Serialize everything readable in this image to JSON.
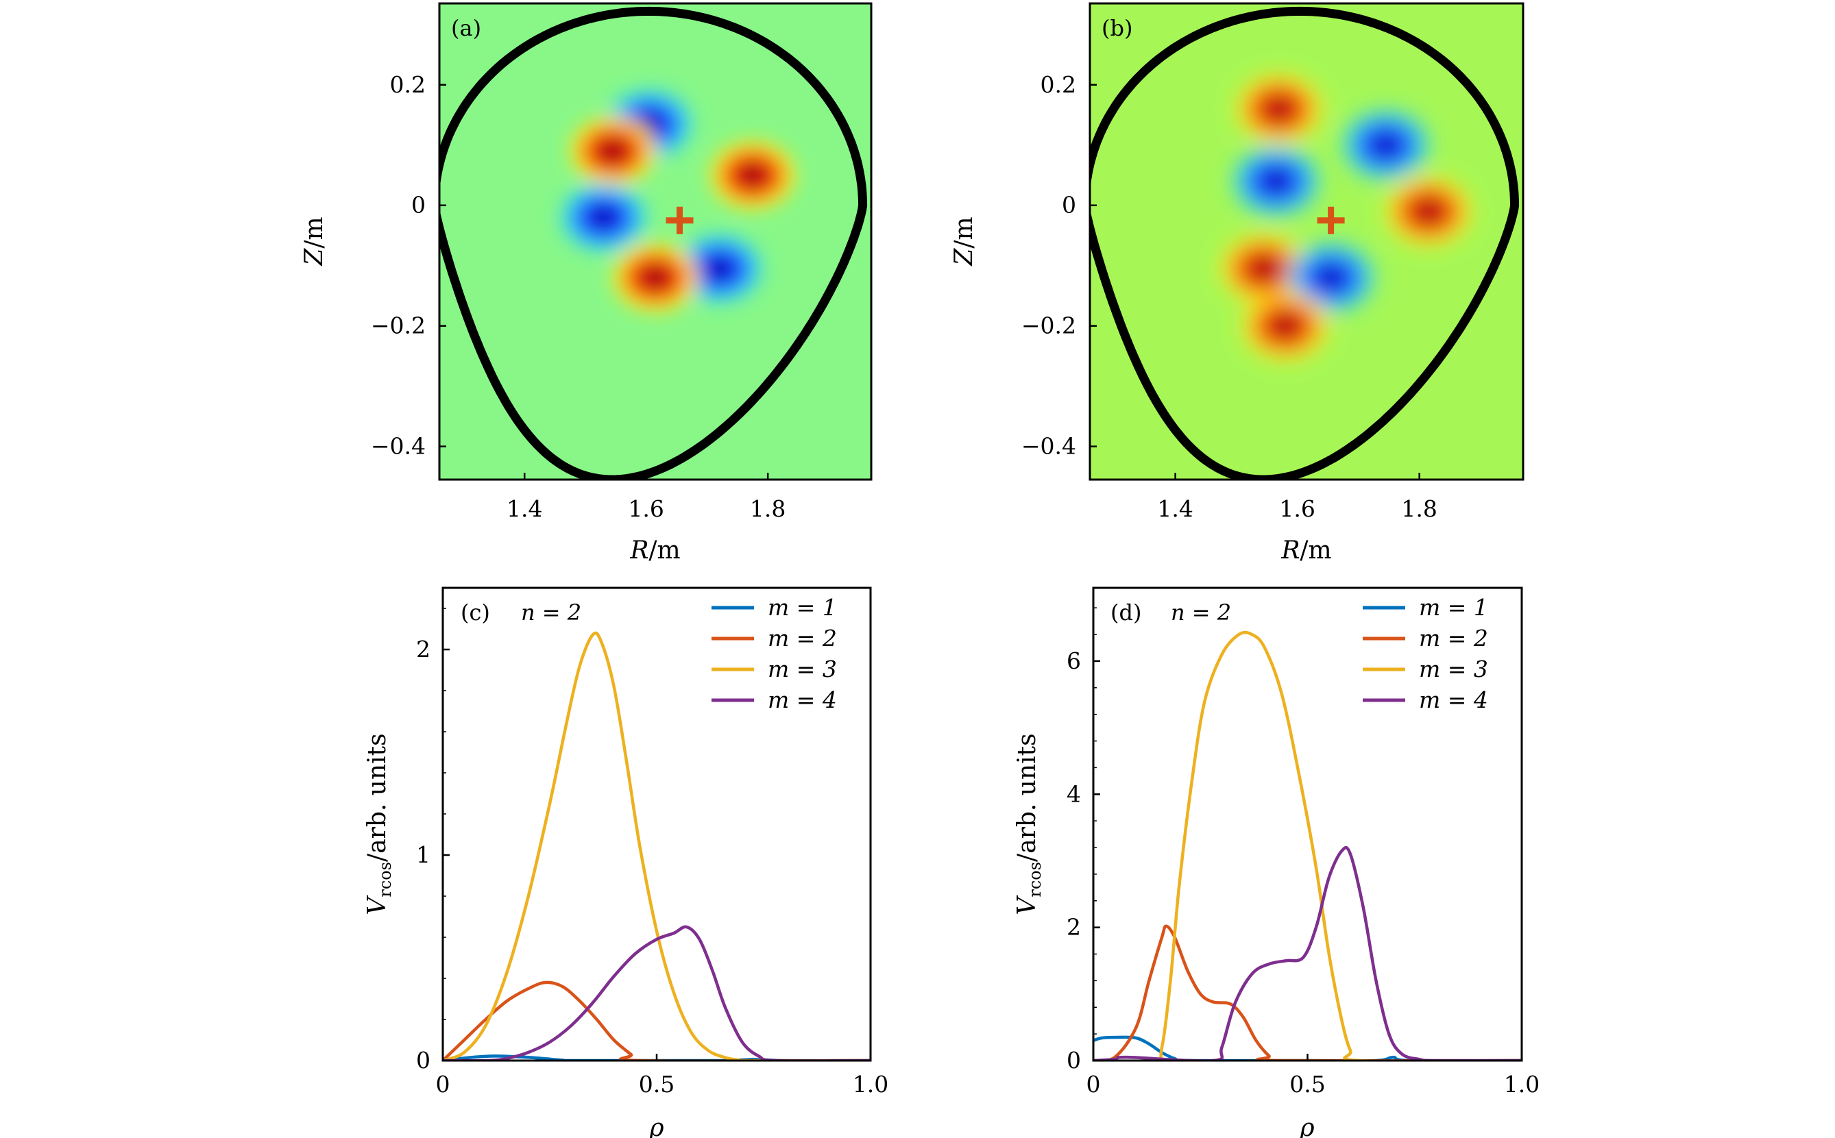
{
  "chart_data": [
    {
      "panel": "(a)",
      "type": "heatmap",
      "xlabel_var": "R",
      "xlabel_unit": "/m",
      "ylabel_var": "Z",
      "ylabel_unit": "/m",
      "xlim": [
        1.26,
        1.97
      ],
      "ylim": [
        -0.455,
        0.335
      ],
      "xticks": [
        1.4,
        1.6,
        1.8
      ],
      "xtick_labels": [
        "1.4",
        "1.6",
        "1.8"
      ],
      "yticks": [
        -0.4,
        -0.2,
        0,
        0.2
      ],
      "ytick_labels": [
        "−0.4",
        "−0.2",
        "0",
        "0.2"
      ],
      "background_color": "#88f788",
      "boundary_color": "#000000",
      "marker_color": "#d95319",
      "magnetic_axis": [
        1.655,
        -0.025
      ],
      "colormap": "jet",
      "blobs": [
        {
          "x": 1.605,
          "y": 0.135,
          "sign": -1
        },
        {
          "x": 1.545,
          "y": 0.09,
          "sign": 1
        },
        {
          "x": 1.775,
          "y": 0.05,
          "sign": 1
        },
        {
          "x": 1.53,
          "y": -0.02,
          "sign": -1
        },
        {
          "x": 1.72,
          "y": -0.105,
          "sign": -1
        },
        {
          "x": 1.615,
          "y": -0.12,
          "sign": 1
        }
      ]
    },
    {
      "panel": "(b)",
      "type": "heatmap",
      "xlabel_var": "R",
      "xlabel_unit": "/m",
      "ylabel_var": "Z",
      "ylabel_unit": "/m",
      "xlim": [
        1.26,
        1.97
      ],
      "ylim": [
        -0.455,
        0.335
      ],
      "xticks": [
        1.4,
        1.6,
        1.8
      ],
      "xtick_labels": [
        "1.4",
        "1.6",
        "1.8"
      ],
      "yticks": [
        -0.4,
        -0.2,
        0,
        0.2
      ],
      "ytick_labels": [
        "−0.4",
        "−0.2",
        "0",
        "0.2"
      ],
      "background_color": "#a6f756",
      "boundary_color": "#000000",
      "marker_color": "#d95319",
      "magnetic_axis": [
        1.655,
        -0.025
      ],
      "colormap": "jet",
      "blobs": [
        {
          "x": 1.57,
          "y": 0.16,
          "sign": 1
        },
        {
          "x": 1.745,
          "y": 0.1,
          "sign": -1
        },
        {
          "x": 1.565,
          "y": 0.04,
          "sign": -1
        },
        {
          "x": 1.815,
          "y": -0.01,
          "sign": 1
        },
        {
          "x": 1.545,
          "y": -0.105,
          "sign": 1
        },
        {
          "x": 1.655,
          "y": -0.12,
          "sign": -1
        },
        {
          "x": 1.58,
          "y": -0.2,
          "sign": 1
        }
      ]
    },
    {
      "panel": "(c)",
      "type": "line",
      "annotation": "n = 2",
      "xlabel": "ρ",
      "ylabel_main": "V",
      "ylabel_sub": "rcos",
      "ylabel_rest": "/arb. units",
      "xlim": [
        0,
        1.0
      ],
      "ylim": [
        0,
        2.3
      ],
      "xticks": [
        0,
        0.5,
        1.0
      ],
      "xtick_labels": [
        "0",
        "0.5",
        "1.0"
      ],
      "yticks": [
        0,
        1,
        2
      ],
      "ytick_labels": [
        "0",
        "1",
        "2"
      ],
      "legend_position": "top-right",
      "series": [
        {
          "name": "m = 1",
          "color": "#0072bd",
          "x": [
            0,
            0.04,
            0.08,
            0.12,
            0.16,
            0.2,
            0.24,
            0.28,
            0.3,
            0.5,
            0.66,
            0.72,
            0.75,
            0.8,
            1.0
          ],
          "y": [
            0,
            0.01,
            0.018,
            0.022,
            0.02,
            0.016,
            0.009,
            0.002,
            0,
            0,
            0,
            0.006,
            0.004,
            0,
            0
          ]
        },
        {
          "name": "m = 2",
          "color": "#d95319",
          "x": [
            0,
            0.05,
            0.1,
            0.15,
            0.2,
            0.24,
            0.28,
            0.32,
            0.36,
            0.4,
            0.44,
            0.46,
            1.0
          ],
          "y": [
            0,
            0.1,
            0.2,
            0.29,
            0.35,
            0.38,
            0.36,
            0.29,
            0.2,
            0.1,
            0.03,
            0,
            0
          ]
        },
        {
          "name": "m = 3",
          "color": "#edb120",
          "x": [
            0,
            0.05,
            0.1,
            0.15,
            0.2,
            0.25,
            0.29,
            0.32,
            0.35,
            0.37,
            0.4,
            0.43,
            0.46,
            0.5,
            0.54,
            0.58,
            0.62,
            0.66,
            0.69,
            0.71,
            1.0
          ],
          "y": [
            0,
            0.04,
            0.17,
            0.43,
            0.8,
            1.25,
            1.65,
            1.92,
            2.07,
            2.04,
            1.82,
            1.45,
            1.05,
            0.63,
            0.33,
            0.14,
            0.05,
            0.015,
            0.003,
            0,
            0
          ]
        },
        {
          "name": "m = 4",
          "color": "#7e2f8e",
          "x": [
            0,
            0.1,
            0.15,
            0.2,
            0.25,
            0.3,
            0.35,
            0.4,
            0.45,
            0.5,
            0.54,
            0.57,
            0.6,
            0.63,
            0.66,
            0.7,
            0.74,
            0.78,
            1.0
          ],
          "y": [
            0,
            0,
            0.01,
            0.04,
            0.09,
            0.17,
            0.28,
            0.41,
            0.52,
            0.59,
            0.62,
            0.65,
            0.59,
            0.44,
            0.26,
            0.09,
            0.02,
            0,
            0
          ]
        }
      ]
    },
    {
      "panel": "(d)",
      "type": "line",
      "annotation": "n = 2",
      "xlabel": "ρ",
      "ylabel_main": "V",
      "ylabel_sub": "rcos",
      "ylabel_rest": "/arb. units",
      "xlim": [
        0,
        1.0
      ],
      "ylim": [
        0,
        7.1
      ],
      "xticks": [
        0,
        0.5,
        1.0
      ],
      "xtick_labels": [
        "0",
        "0.5",
        "1.0"
      ],
      "yticks": [
        0,
        2,
        4,
        6
      ],
      "ytick_labels": [
        "0",
        "2",
        "4",
        "6"
      ],
      "legend_position": "top-right",
      "series": [
        {
          "name": "m = 1",
          "color": "#0072bd",
          "x": [
            0,
            0.02,
            0.06,
            0.1,
            0.13,
            0.16,
            0.19,
            0.22,
            0.5,
            0.66,
            0.7,
            0.74,
            1.0
          ],
          "y": [
            0.3,
            0.34,
            0.35,
            0.34,
            0.25,
            0.12,
            0.03,
            0,
            0,
            0,
            0.05,
            0,
            0
          ]
        },
        {
          "name": "m = 2",
          "color": "#d95319",
          "x": [
            0,
            0.05,
            0.1,
            0.13,
            0.16,
            0.17,
            0.19,
            0.22,
            0.25,
            0.28,
            0.32,
            0.35,
            0.38,
            0.41,
            0.43,
            1.0
          ],
          "y": [
            0,
            0.05,
            0.5,
            1.2,
            1.85,
            2.02,
            1.85,
            1.35,
            1.0,
            0.88,
            0.85,
            0.65,
            0.3,
            0.07,
            0,
            0
          ]
        },
        {
          "name": "m = 3",
          "color": "#edb120",
          "x": [
            0,
            0.14,
            0.16,
            0.18,
            0.2,
            0.23,
            0.26,
            0.3,
            0.34,
            0.37,
            0.4,
            0.44,
            0.48,
            0.52,
            0.55,
            0.58,
            0.6,
            0.62,
            1.0
          ],
          "y": [
            0,
            0,
            0.2,
            1.2,
            2.6,
            4.2,
            5.4,
            6.1,
            6.4,
            6.4,
            6.2,
            5.5,
            4.3,
            2.9,
            1.6,
            0.6,
            0.15,
            0,
            0
          ]
        },
        {
          "name": "m = 4",
          "color": "#7e2f8e",
          "x": [
            0,
            0.05,
            0.08,
            0.28,
            0.3,
            0.33,
            0.37,
            0.41,
            0.45,
            0.49,
            0.52,
            0.55,
            0.58,
            0.6,
            0.63,
            0.66,
            0.69,
            0.72,
            0.76,
            0.8,
            1.0
          ],
          "y": [
            0,
            0.02,
            0.05,
            0,
            0.2,
            0.85,
            1.3,
            1.45,
            1.5,
            1.55,
            2.0,
            2.75,
            3.15,
            3.1,
            2.3,
            1.2,
            0.4,
            0.1,
            0.02,
            0,
            0
          ]
        }
      ]
    }
  ]
}
